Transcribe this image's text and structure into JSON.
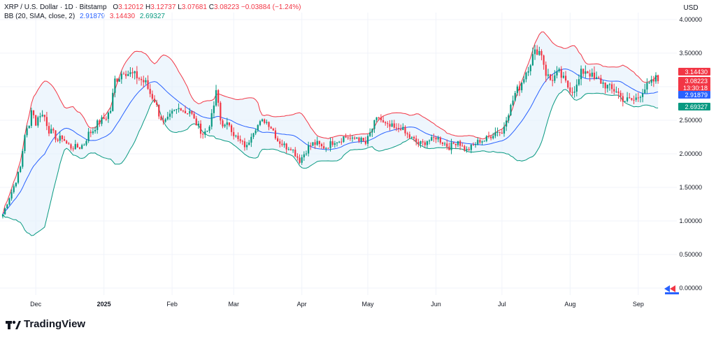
{
  "legend": {
    "symbol": "XRP / U.S. Dollar · 1D · Bitstamp",
    "o_label": "O",
    "o": "3.12012",
    "h_label": "H",
    "h": "3.12737",
    "l_label": "L",
    "l": "3.07681",
    "c_label": "C",
    "c": "3.08223",
    "change": "−0.03884 (−1.24%)",
    "bb_label": "BB (20, SMA, close, 2)",
    "bb_basis": "2.91879",
    "bb_upper": "3.14430",
    "bb_lower": "2.69327"
  },
  "currency": "USD",
  "brand": "TradingView",
  "colors": {
    "up": "#089981",
    "down": "#f23645",
    "upper": "#f23645",
    "basis": "#2962ff",
    "lower": "#089981",
    "fill": "#e3f0fc",
    "countdown": "#f23645",
    "grid": "#f0f3fa"
  },
  "price_tags": [
    {
      "value": "3.14430",
      "color": "#f23645"
    },
    {
      "value": "3.08223",
      "color": "#f23645"
    },
    {
      "value": "13:30:18",
      "color": "#f23645"
    },
    {
      "value": "2.91879",
      "color": "#2962ff"
    },
    {
      "value": "2.69327",
      "color": "#089981"
    }
  ],
  "chart_data": {
    "type": "candlestick",
    "y_axis": {
      "min": 0,
      "max": 4.0,
      "ticks": [
        "4.00000",
        "3.50000",
        "3.00000",
        "2.50000",
        "2.00000",
        "1.50000",
        "1.00000",
        "0.50000",
        "0.00000"
      ]
    },
    "x_axis": {
      "labels": [
        "Dec",
        "2025",
        "Feb",
        "Mar",
        "Apr",
        "May",
        "Jun",
        "Jul",
        "Aug",
        "Sep"
      ],
      "label_days": [
        15,
        46,
        77,
        105,
        136,
        166,
        197,
        227,
        258,
        289
      ]
    },
    "close_path": [
      [
        0,
        1.1
      ],
      [
        3,
        1.35
      ],
      [
        6,
        1.6
      ],
      [
        8,
        1.8
      ],
      [
        10,
        2.3
      ],
      [
        12,
        2.4
      ],
      [
        13,
        2.7
      ],
      [
        15,
        2.45
      ],
      [
        17,
        2.6
      ],
      [
        19,
        2.55
      ],
      [
        21,
        2.35
      ],
      [
        23,
        2.3
      ],
      [
        25,
        2.2
      ],
      [
        27,
        2.25
      ],
      [
        29,
        2.15
      ],
      [
        31,
        2.1
      ],
      [
        33,
        2.1
      ],
      [
        35,
        2.1
      ],
      [
        37,
        2.15
      ],
      [
        39,
        2.3
      ],
      [
        41,
        2.35
      ],
      [
        43,
        2.45
      ],
      [
        45,
        2.5
      ],
      [
        47,
        2.55
      ],
      [
        49,
        2.65
      ],
      [
        51,
        3.1
      ],
      [
        53,
        3.15
      ],
      [
        55,
        3.25
      ],
      [
        57,
        3.2
      ],
      [
        59,
        3.18
      ],
      [
        61,
        3.15
      ],
      [
        63,
        3.1
      ],
      [
        65,
        3.05
      ],
      [
        67,
        2.9
      ],
      [
        69,
        2.8
      ],
      [
        71,
        2.6
      ],
      [
        73,
        2.45
      ],
      [
        75,
        2.5
      ],
      [
        77,
        2.6
      ],
      [
        79,
        2.65
      ],
      [
        81,
        2.7
      ],
      [
        83,
        2.62
      ],
      [
        85,
        2.65
      ],
      [
        87,
        2.5
      ],
      [
        89,
        2.4
      ],
      [
        91,
        2.3
      ],
      [
        93,
        2.35
      ],
      [
        95,
        2.55
      ],
      [
        97,
        2.9
      ],
      [
        98,
        2.75
      ],
      [
        99,
        2.5
      ],
      [
        101,
        2.4
      ],
      [
        103,
        2.45
      ],
      [
        105,
        2.3
      ],
      [
        107,
        2.2
      ],
      [
        109,
        2.15
      ],
      [
        111,
        2.1
      ],
      [
        113,
        2.3
      ],
      [
        115,
        2.4
      ],
      [
        117,
        2.45
      ],
      [
        119,
        2.5
      ],
      [
        121,
        2.45
      ],
      [
        123,
        2.35
      ],
      [
        125,
        2.2
      ],
      [
        127,
        2.15
      ],
      [
        129,
        2.1
      ],
      [
        131,
        2.1
      ],
      [
        133,
        2.0
      ],
      [
        135,
        1.9
      ],
      [
        136,
        1.95
      ],
      [
        137,
        2.0
      ],
      [
        139,
        2.1
      ],
      [
        141,
        2.15
      ],
      [
        143,
        2.15
      ],
      [
        145,
        2.1
      ],
      [
        147,
        2.1
      ],
      [
        149,
        2.15
      ],
      [
        151,
        2.2
      ],
      [
        153,
        2.2
      ],
      [
        155,
        2.25
      ],
      [
        157,
        2.25
      ],
      [
        159,
        2.2
      ],
      [
        161,
        2.25
      ],
      [
        163,
        2.2
      ],
      [
        165,
        2.15
      ],
      [
        167,
        2.3
      ],
      [
        169,
        2.45
      ],
      [
        171,
        2.55
      ],
      [
        173,
        2.45
      ],
      [
        175,
        2.4
      ],
      [
        177,
        2.4
      ],
      [
        179,
        2.35
      ],
      [
        181,
        2.4
      ],
      [
        183,
        2.3
      ],
      [
        185,
        2.25
      ],
      [
        187,
        2.2
      ],
      [
        189,
        2.15
      ],
      [
        191,
        2.15
      ],
      [
        193,
        2.2
      ],
      [
        195,
        2.2
      ],
      [
        197,
        2.25
      ],
      [
        199,
        2.2
      ],
      [
        201,
        2.15
      ],
      [
        203,
        2.1
      ],
      [
        205,
        2.15
      ],
      [
        207,
        2.2
      ],
      [
        209,
        2.1
      ],
      [
        211,
        2.05
      ],
      [
        213,
        2.1
      ],
      [
        215,
        2.15
      ],
      [
        217,
        2.2
      ],
      [
        219,
        2.2
      ],
      [
        221,
        2.25
      ],
      [
        223,
        2.3
      ],
      [
        225,
        2.35
      ],
      [
        227,
        2.3
      ],
      [
        229,
        2.55
      ],
      [
        231,
        2.7
      ],
      [
        233,
        2.9
      ],
      [
        235,
        3.0
      ],
      [
        237,
        3.15
      ],
      [
        239,
        3.3
      ],
      [
        241,
        3.45
      ],
      [
        243,
        3.55
      ],
      [
        245,
        3.5
      ],
      [
        247,
        3.2
      ],
      [
        249,
        3.1
      ],
      [
        251,
        3.15
      ],
      [
        253,
        3.2
      ],
      [
        255,
        3.1
      ],
      [
        257,
        3.0
      ],
      [
        259,
        2.95
      ],
      [
        261,
        3.0
      ],
      [
        263,
        3.2
      ],
      [
        265,
        3.25
      ],
      [
        267,
        3.2
      ],
      [
        269,
        3.1
      ],
      [
        271,
        3.1
      ],
      [
        273,
        3.05
      ],
      [
        275,
        3.0
      ],
      [
        277,
        2.95
      ],
      [
        279,
        2.95
      ],
      [
        281,
        2.85
      ],
      [
        283,
        2.8
      ],
      [
        285,
        2.8
      ],
      [
        287,
        2.8
      ],
      [
        289,
        2.85
      ],
      [
        291,
        2.95
      ],
      [
        293,
        3.0
      ],
      [
        295,
        3.05
      ],
      [
        297,
        3.12
      ],
      [
        298,
        3.08
      ]
    ]
  }
}
